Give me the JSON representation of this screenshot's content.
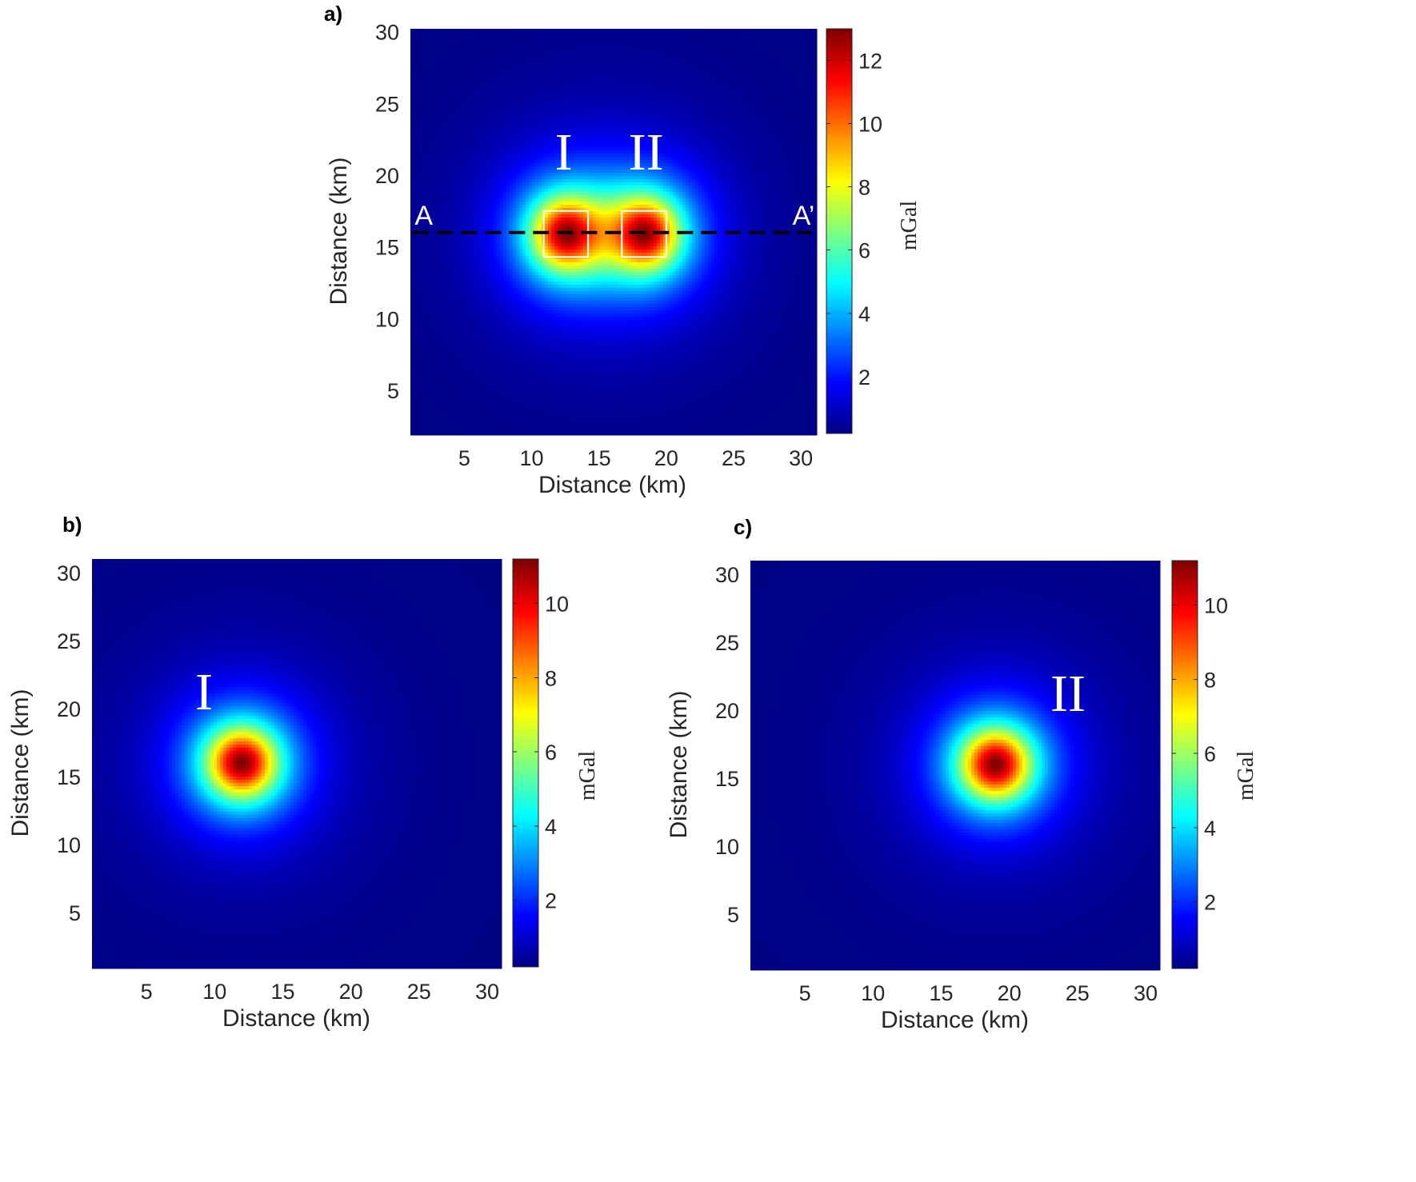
{
  "chart_data": [
    {
      "type": "heatmap",
      "panel_label": "a)",
      "xlabel": "Distance (km)",
      "ylabel": "Distance (km)",
      "xlim": [
        1,
        31
      ],
      "ylim": [
        2,
        30.2
      ],
      "xticks": [
        5,
        10,
        15,
        20,
        25,
        30
      ],
      "yticks": [
        5,
        10,
        15,
        20,
        25,
        30
      ],
      "colorbar": {
        "label": "mGal",
        "range": [
          0.2,
          13
        ],
        "ticks": [
          2,
          4,
          6,
          8,
          10,
          12
        ]
      },
      "colormap": "jet",
      "field": {
        "sources": [
          {
            "name": "I",
            "x": 12.5,
            "y": 15.9,
            "peak_mGal": 13
          },
          {
            "name": "II",
            "x": 18.5,
            "y": 15.9,
            "peak_mGal": 13
          }
        ]
      },
      "source_boxes": [
        {
          "label": "I",
          "x": [
            10.9,
            14.2
          ],
          "y": [
            14.3,
            17.5
          ]
        },
        {
          "label": "II",
          "x": [
            16.7,
            20.0
          ],
          "y": [
            14.3,
            17.5
          ]
        }
      ],
      "profile": {
        "start_label": "A",
        "end_label": "A’",
        "y": 16.0,
        "x": [
          1.2,
          30.8
        ]
      }
    },
    {
      "type": "heatmap",
      "panel_label": "b)",
      "xlabel": "Distance (km)",
      "ylabel": "Distance (km)",
      "xlim": [
        1,
        31
      ],
      "ylim": [
        1,
        31
      ],
      "xticks": [
        5,
        10,
        15,
        20,
        25,
        30
      ],
      "yticks": [
        5,
        10,
        15,
        20,
        25,
        30
      ],
      "colorbar": {
        "label": "mGal",
        "range": [
          0.2,
          11.2
        ],
        "ticks": [
          2,
          4,
          6,
          8,
          10
        ]
      },
      "colormap": "jet",
      "field": {
        "sources": [
          {
            "name": "I",
            "x": 12.0,
            "y": 16.0,
            "peak_mGal": 11.2
          }
        ]
      }
    },
    {
      "type": "heatmap",
      "panel_label": "c)",
      "xlabel": "Distance (km)",
      "ylabel": "Distance (km)",
      "xlim": [
        1,
        31
      ],
      "ylim": [
        1,
        31
      ],
      "xticks": [
        5,
        10,
        15,
        20,
        25,
        30
      ],
      "yticks": [
        5,
        10,
        15,
        20,
        25,
        30
      ],
      "colorbar": {
        "label": "mGal",
        "range": [
          0.2,
          11.2
        ],
        "ticks": [
          2,
          4,
          6,
          8,
          10
        ]
      },
      "colormap": "jet",
      "field": {
        "sources": [
          {
            "name": "II",
            "x": 19.0,
            "y": 16.0,
            "peak_mGal": 11.2
          }
        ]
      }
    }
  ]
}
